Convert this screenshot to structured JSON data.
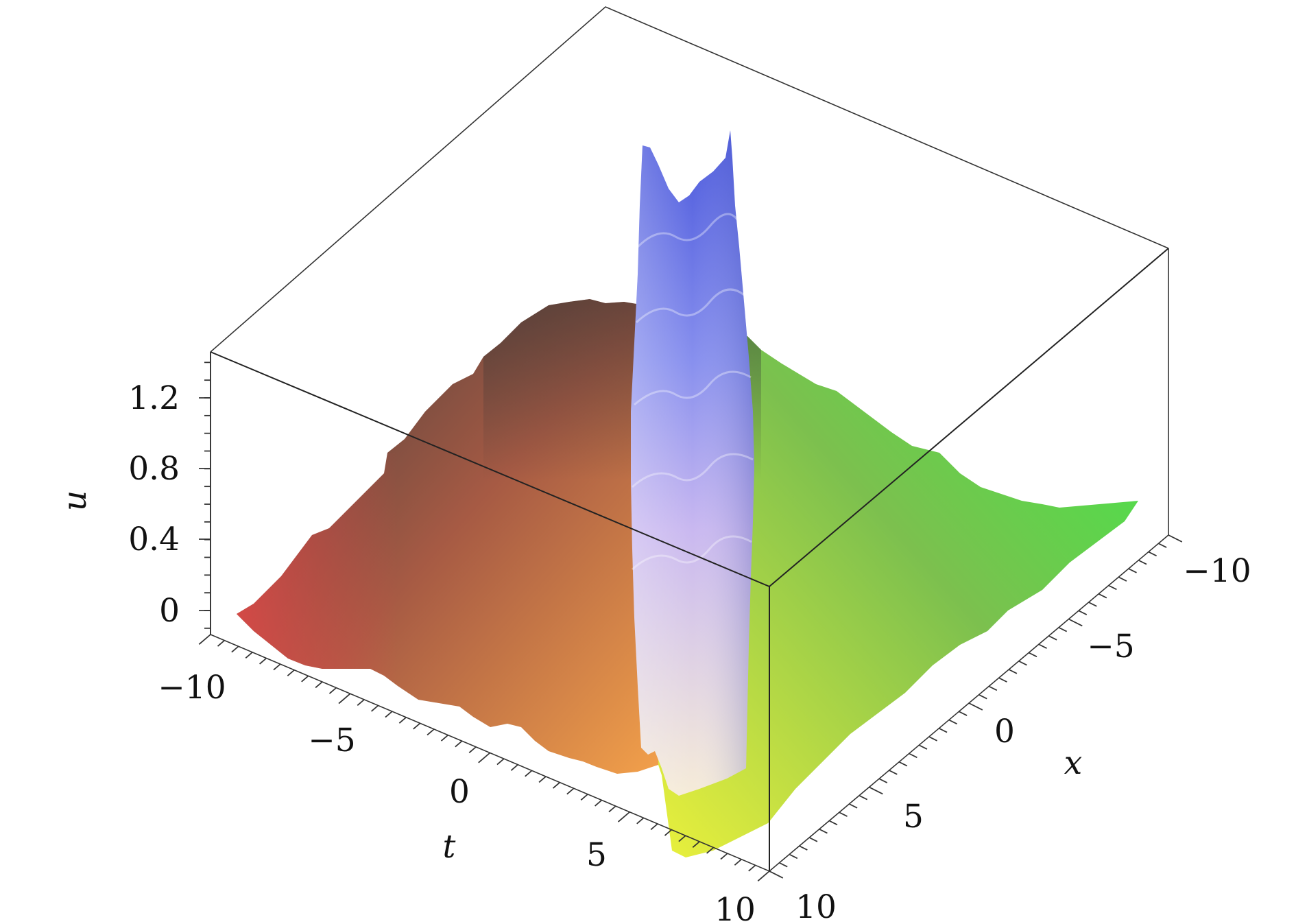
{
  "chart_data": {
    "type": "surface",
    "title": "",
    "xlabel": "x",
    "ylabel": "t",
    "zlabel": "u",
    "x_ticks": [
      "−10",
      "−5",
      "0",
      "5",
      "10"
    ],
    "t_ticks": [
      "−10",
      "−5",
      "0",
      "5",
      "10"
    ],
    "u_ticks": [
      "0",
      "0.4",
      "0.8",
      "1.2"
    ],
    "xlim": [
      -10,
      10
    ],
    "tlim": [
      -10,
      10
    ],
    "ulim": [
      -0.15,
      1.45
    ],
    "surface": {
      "description_free": true,
      "background_level": 0.0,
      "plateau_peak_value": 0.9,
      "ridge_peak_value": 1.35,
      "ridge_min_value": 0.0
    },
    "colors": {
      "corner_t_min_x_max": "#e84a4a",
      "corner_t_min_x_min": "#3a3a3a",
      "corner_t_max_x_max": "#f0f03a",
      "corner_t_max_x_min": "#4ae84a",
      "ridge_top": "#4a5ee0",
      "ridge_bottom": "#f5e8f0"
    }
  }
}
